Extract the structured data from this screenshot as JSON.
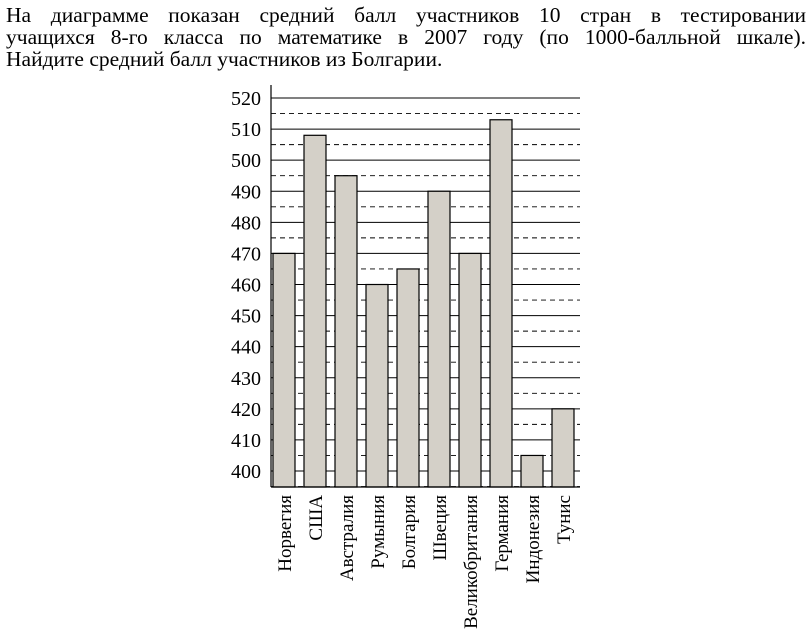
{
  "question": {
    "lines": [
      "На диаграмме показан средний балл участников 10 стран в тестировании",
      "учащихся 8-го класса по математике в 2007 году (по 1000-балльной шкале).",
      "Найдите средний балл участников из Болгарии."
    ]
  },
  "chart_data": {
    "type": "bar",
    "title": "",
    "xlabel": "",
    "ylabel": "",
    "categories": [
      "Норвегия",
      "США",
      "Австралия",
      "Румыния",
      "Болгария",
      "Швеция",
      "Великобритания",
      "Германия",
      "Индонезия",
      "Тунис"
    ],
    "values": [
      470,
      508,
      495,
      460,
      465,
      490,
      470,
      513,
      405,
      420
    ],
    "ylim": [
      395,
      520
    ],
    "yticks": [
      400,
      410,
      420,
      430,
      440,
      450,
      460,
      470,
      480,
      490,
      500,
      510,
      520
    ],
    "grid": {
      "major_step": 10,
      "minor_dashed_step": 5
    },
    "colors": {
      "bar_fill": "#d4d0c8",
      "bar_stroke": "#000000",
      "grid": "#000000"
    }
  }
}
